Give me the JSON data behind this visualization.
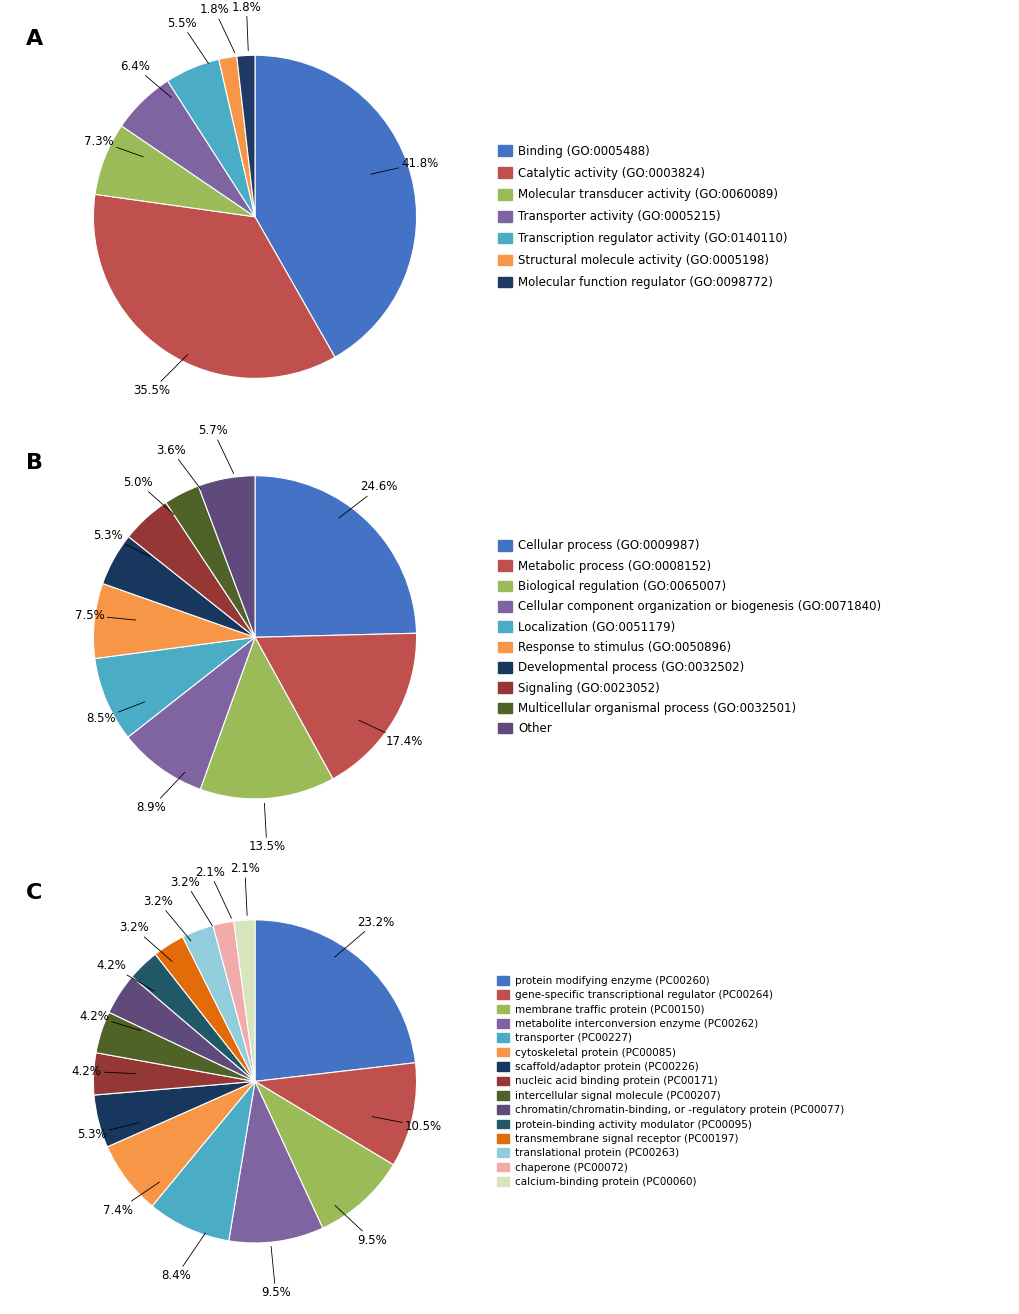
{
  "chart_A": {
    "values": [
      41.8,
      35.5,
      7.3,
      6.4,
      5.5,
      1.8,
      1.8
    ],
    "labels": [
      "41.8%",
      "35.5%",
      "7.3%",
      "6.4%",
      "5.5%",
      "1.8%",
      "1.8%"
    ],
    "colors": [
      "#4472C4",
      "#C0504D",
      "#9BBB59",
      "#8064A2",
      "#4BACC6",
      "#F79646",
      "#1F3864"
    ],
    "legend_labels": [
      "Binding (GO:0005488)",
      "Catalytic activity (GO:0003824)",
      "Molecular transducer activity (GO:0060089)",
      "Transporter activity (GO:0005215)",
      "Transcription regulator activity (GO:0140110)",
      "Structural molecule activity (GO:0005198)",
      "Molecular function regulator (GO:0098772)"
    ]
  },
  "chart_B": {
    "values": [
      24.6,
      17.4,
      13.5,
      8.9,
      8.5,
      7.5,
      5.3,
      5.0,
      3.6,
      5.7
    ],
    "labels": [
      "24.6%",
      "17.4%",
      "13.5%",
      "8.9%",
      "8.5%",
      "7.5%",
      "5.3%",
      "5.0%",
      "3.6%",
      "5.7%"
    ],
    "colors": [
      "#4472C4",
      "#C0504D",
      "#9BBB59",
      "#8064A2",
      "#4BACC6",
      "#F79646",
      "#17375E",
      "#953735",
      "#4F6228",
      "#604A7B"
    ],
    "legend_labels": [
      "Cellular process (GO:0009987)",
      "Metabolic process (GO:0008152)",
      "Biological regulation (GO:0065007)",
      "Cellular component organization or biogenesis (GO:0071840)",
      "Localization (GO:0051179)",
      "Response to stimulus (GO:0050896)",
      "Developmental process (GO:0032502)",
      "Signaling (GO:0023052)",
      "Multicellular organismal process (GO:0032501)",
      "Other"
    ]
  },
  "chart_C": {
    "values": [
      23.2,
      10.5,
      9.5,
      9.5,
      8.4,
      7.4,
      5.3,
      4.2,
      4.2,
      4.2,
      3.2,
      3.2,
      3.2,
      2.1,
      2.1
    ],
    "labels": [
      "23.2%",
      "10.5%",
      "9.5%",
      "9.5%",
      "8.4%",
      "7.4%",
      "5.3%",
      "4.2%",
      "4.2%",
      "4.2%",
      "3.2%",
      "3.2%",
      "3.2%",
      "2.1%",
      "2.1%"
    ],
    "colors": [
      "#4472C4",
      "#C0504D",
      "#9BBB59",
      "#8064A2",
      "#4BACC6",
      "#F79646",
      "#17375E",
      "#953735",
      "#4F6228",
      "#604A7B",
      "#215868",
      "#E36C09",
      "#92CDDC",
      "#F2ABAB",
      "#D7E4BC"
    ],
    "legend_labels": [
      "protein modifying enzyme (PC00260)",
      "gene-specific transcriptional regulator (PC00264)",
      "membrane traffic protein (PC00150)",
      "metabolite interconversion enzyme (PC00262)",
      "transporter (PC00227)",
      "cytoskeletal protein (PC00085)",
      "scaffold/adaptor protein (PC00226)",
      "nucleic acid binding protein (PC00171)",
      "intercellular signal molecule (PC00207)",
      "chromatin/chromatin-binding, or -regulatory protein (PC00077)",
      "protein-binding activity modulator (PC00095)",
      "transmembrane signal receptor (PC00197)",
      "translational protein (PC00263)",
      "chaperone (PC00072)",
      "calcium-binding protein (PC00060)"
    ]
  },
  "background_color": "#FFFFFF",
  "label_fontsize": 8.5,
  "legend_fontsize": 8.5,
  "panel_label_fontsize": 16
}
